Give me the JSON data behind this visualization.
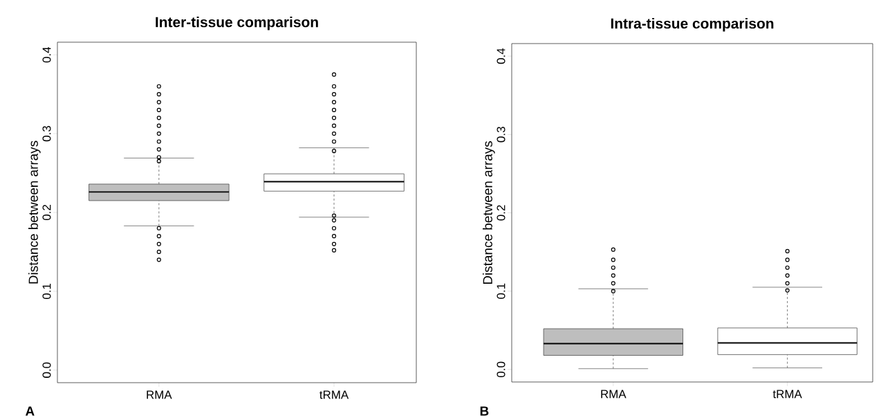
{
  "chart_data": [
    {
      "type": "box",
      "title": "Inter-tissue comparison",
      "ylabel": "Distance between arrays",
      "categories": [
        "RMA",
        "tRMA"
      ],
      "colors": [
        "#bebebe",
        "#ffffff"
      ],
      "boxes": [
        {
          "low": 0.183,
          "q1": 0.215,
          "median": 0.226,
          "q3": 0.236,
          "high": 0.269,
          "outliers": [
            0.14,
            0.15,
            0.16,
            0.17,
            0.18,
            0.265,
            0.27,
            0.28,
            0.29,
            0.3,
            0.31,
            0.32,
            0.33,
            0.34,
            0.35,
            0.36
          ]
        },
        {
          "low": 0.194,
          "q1": 0.227,
          "median": 0.239,
          "q3": 0.249,
          "high": 0.282,
          "outliers": [
            0.152,
            0.16,
            0.17,
            0.18,
            0.19,
            0.196,
            0.278,
            0.29,
            0.3,
            0.31,
            0.32,
            0.33,
            0.34,
            0.35,
            0.36,
            0.375
          ]
        }
      ],
      "ylim": [
        -0.016,
        0.416
      ],
      "yticks": [
        {
          "value": 0,
          "label": "0.0"
        },
        0.1,
        0.2,
        0.3,
        0.4
      ],
      "grid": false,
      "annotations": [
        "A"
      ]
    },
    {
      "type": "box",
      "title": "Intra-tissue comparison",
      "ylabel": "Distance between arrays",
      "categories": [
        "RMA",
        "tRMA"
      ],
      "colors": [
        "#bebebe",
        "#ffffff"
      ],
      "boxes": [
        {
          "low": 0.001,
          "q1": 0.018,
          "median": 0.033,
          "q3": 0.052,
          "high": 0.103,
          "outliers": [
            0.1,
            0.11,
            0.12,
            0.13,
            0.14,
            0.153
          ]
        },
        {
          "low": 0.002,
          "q1": 0.019,
          "median": 0.034,
          "q3": 0.053,
          "high": 0.105,
          "outliers": [
            0.101,
            0.11,
            0.12,
            0.13,
            0.14,
            0.151
          ]
        }
      ],
      "ylim": [
        -0.016,
        0.416
      ],
      "yticks": [
        {
          "value": 0,
          "label": "0.0"
        },
        0.1,
        0.2,
        0.3,
        0.4
      ],
      "grid": false,
      "annotations": [
        "B"
      ]
    }
  ]
}
